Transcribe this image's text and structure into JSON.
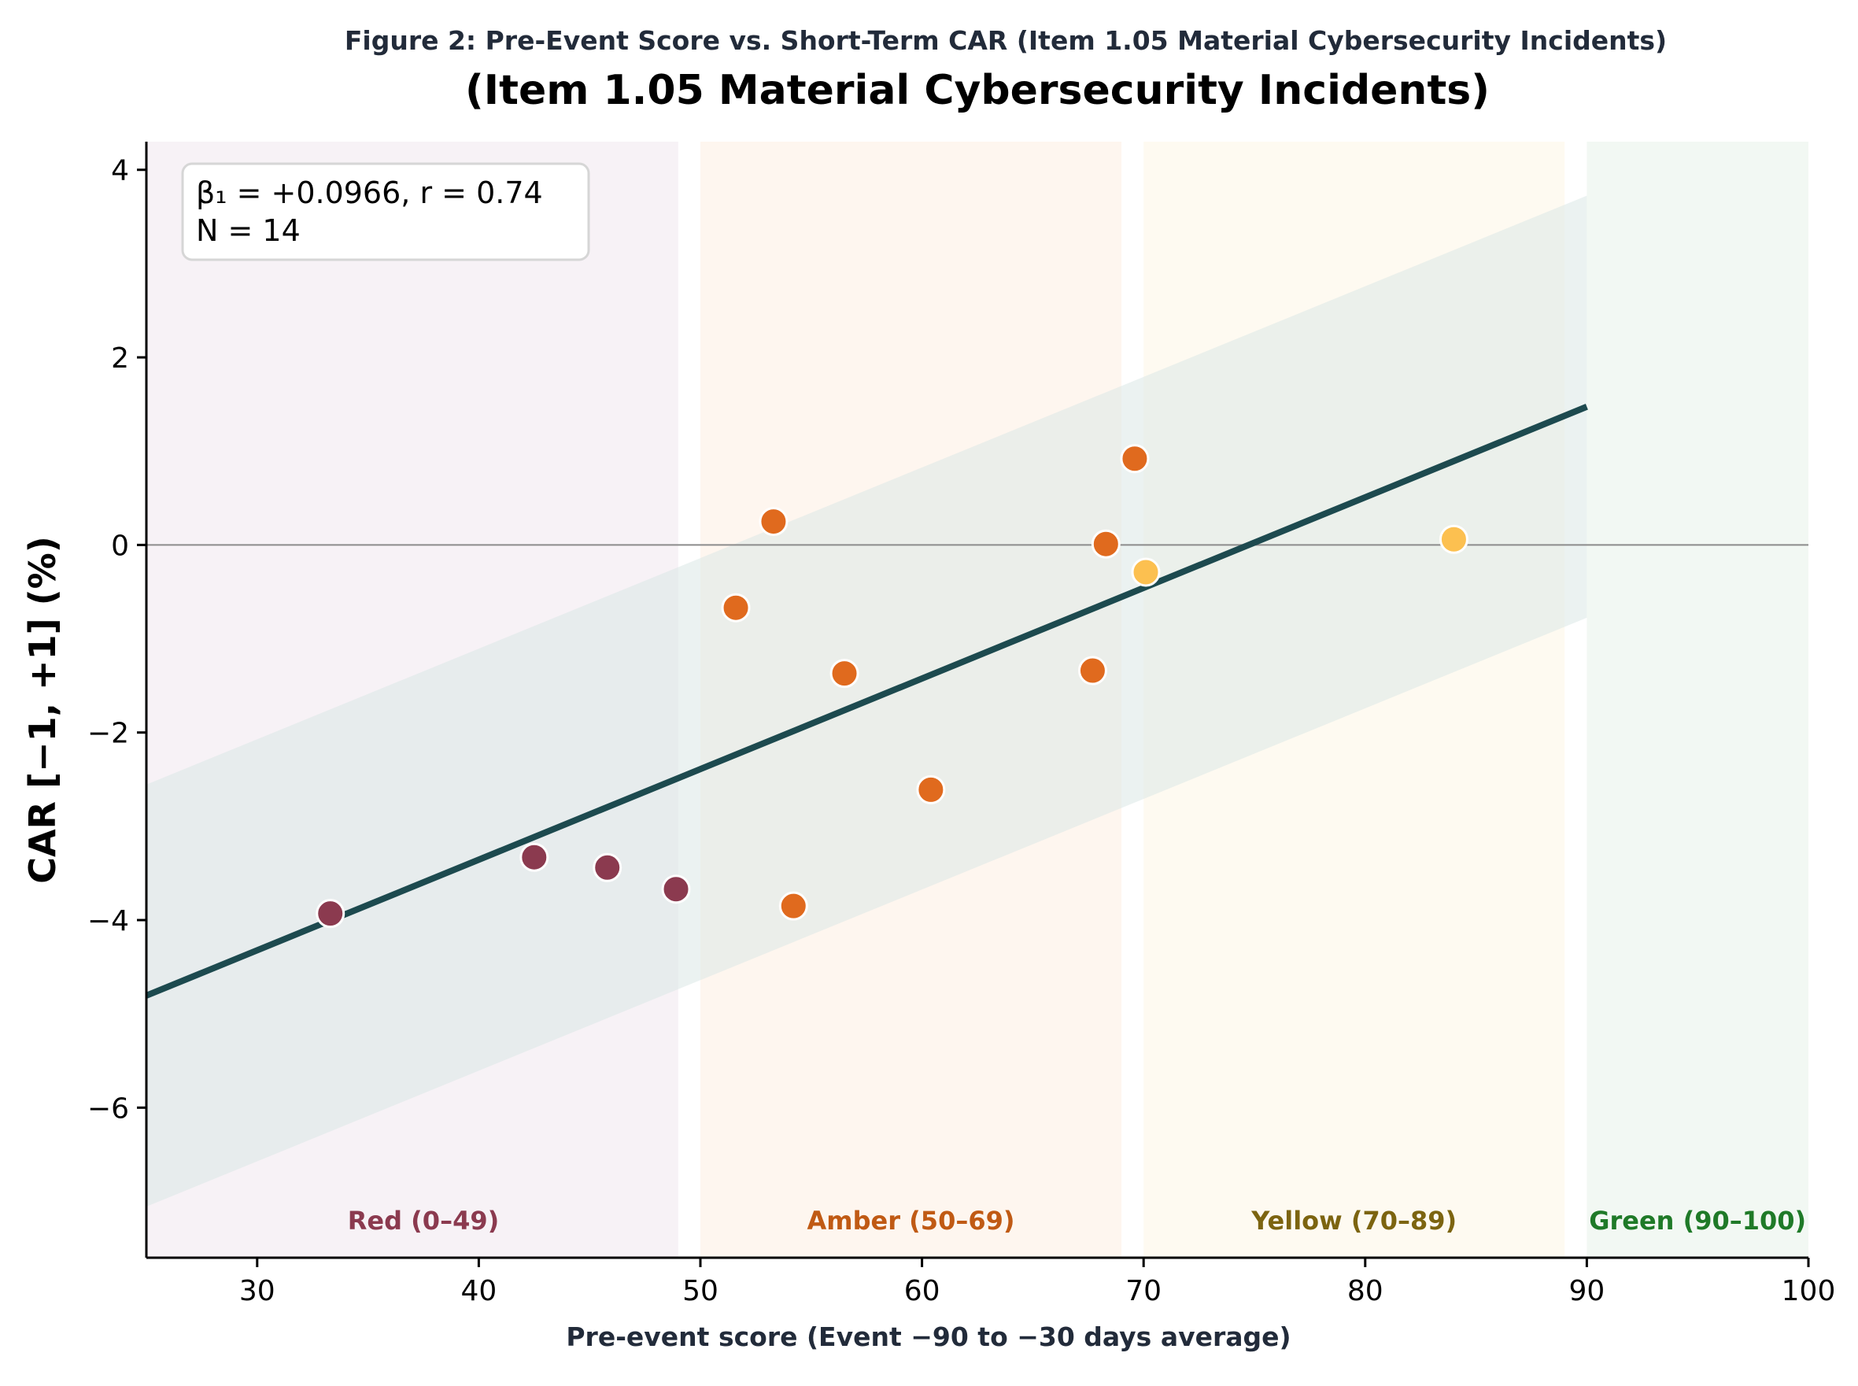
{
  "figure_title": "Figure 2: Pre-Event Score vs. Short-Term CAR (Item 1.05 Material Cybersecurity Incidents)",
  "stats_box": {
    "line1": "β₁ = +0.0966, r = 0.74",
    "line2": "N = 14"
  },
  "chart_data": {
    "type": "scatter",
    "title": "(Item 1.05 Material Cybersecurity Incidents)",
    "xlabel": "Pre-event score (Event −90 to −30 days average)",
    "ylabel": "CAR [−1, +1] (%)",
    "xlim": [
      25,
      100
    ],
    "ylim": [
      -7.6,
      4.3
    ],
    "xticks": [
      30,
      40,
      50,
      60,
      70,
      80,
      90,
      100
    ],
    "xtick_labels": [
      "30",
      "40",
      "50",
      "60",
      "70",
      "80",
      "90",
      "100"
    ],
    "yticks": [
      -6,
      -4,
      -2,
      0,
      2,
      4
    ],
    "ytick_labels": [
      "−6",
      "−4",
      "−2",
      "0",
      "2",
      "4"
    ],
    "grid": false,
    "zero_line": true,
    "zones": [
      {
        "label": "Red (0–49)",
        "x0": 0,
        "x1": 49,
        "fill": "#f4eef3",
        "label_color": "#8b3a4f",
        "label_x": 37.5
      },
      {
        "label": "Amber (50–69)",
        "x0": 50,
        "x1": 69,
        "fill": "#fdf3e9",
        "label_color": "#c05a14",
        "label_x": 59.5
      },
      {
        "label": "Yellow (70–89)",
        "x0": 70,
        "x1": 89,
        "fill": "#fdf8ec",
        "label_color": "#7c6410",
        "label_x": 79.5
      },
      {
        "label": "Green (90–100)",
        "x0": 90,
        "x1": 100,
        "fill": "#eef6ef",
        "label_color": "#1f7a28",
        "label_x": 95
      }
    ],
    "fit_line": {
      "slope": 0.0966,
      "intercept": -7.22,
      "x_range": [
        25,
        90
      ],
      "color": "#1d4a4f"
    },
    "confidence_band": {
      "half_width": 2.25,
      "x_range": [
        25,
        90
      ],
      "color": "#dbe7e6"
    },
    "points": [
      {
        "x": 33.3,
        "y": -3.93,
        "zone": "Red"
      },
      {
        "x": 42.5,
        "y": -3.33,
        "zone": "Red"
      },
      {
        "x": 45.8,
        "y": -3.44,
        "zone": "Red"
      },
      {
        "x": 48.9,
        "y": -3.67,
        "zone": "Red"
      },
      {
        "x": 51.6,
        "y": -0.67,
        "zone": "Amber"
      },
      {
        "x": 53.3,
        "y": 0.25,
        "zone": "Amber"
      },
      {
        "x": 54.2,
        "y": -3.85,
        "zone": "Amber"
      },
      {
        "x": 56.5,
        "y": -1.37,
        "zone": "Amber"
      },
      {
        "x": 60.4,
        "y": -2.61,
        "zone": "Amber"
      },
      {
        "x": 67.7,
        "y": -1.34,
        "zone": "Amber"
      },
      {
        "x": 68.3,
        "y": 0.01,
        "zone": "Amber"
      },
      {
        "x": 69.6,
        "y": 0.92,
        "zone": "Amber"
      },
      {
        "x": 70.1,
        "y": -0.29,
        "zone": "Yellow"
      },
      {
        "x": 84.0,
        "y": 0.06,
        "zone": "Yellow"
      }
    ],
    "point_colors": {
      "Red": "#8b3a4f",
      "Amber": "#e06a1e",
      "Yellow": "#fcc050"
    }
  }
}
